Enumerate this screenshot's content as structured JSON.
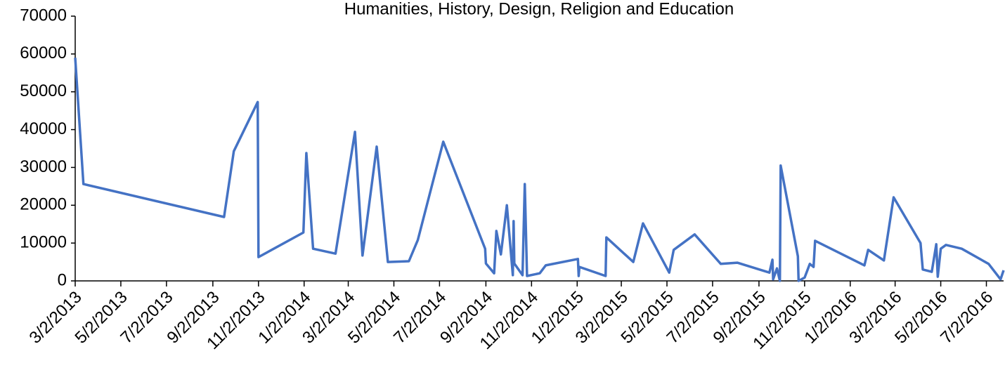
{
  "chart_data": {
    "type": "line",
    "title": "Humanities, History, Design, Religion and Education",
    "x": [
      "3/2/2013",
      "3/13/2013",
      "9/17/2013",
      "9/30/2013",
      "11/1/2013",
      "11/2/2013",
      "1/1/2014",
      "1/5/2014",
      "1/14/2014",
      "2/13/2014",
      "3/11/2014",
      "3/21/2014",
      "4/9/2014",
      "4/24/2014",
      "5/22/2014",
      "6/3/2014",
      "7/7/2014",
      "9/1/2014",
      "9/2/2014",
      "9/13/2014",
      "9/16/2014",
      "9/22/2014",
      "9/30/2014",
      "10/8/2014",
      "10/9/2014",
      "10/10/2014",
      "10/21/2014",
      "10/24/2014",
      "10/27/2014",
      "11/13/2014",
      "11/21/2014",
      "1/3/2015",
      "1/4/2015",
      "1/5/2015",
      "2/9/2015",
      "2/10/2015",
      "3/18/2015",
      "3/31/2015",
      "5/5/2015",
      "5/11/2015",
      "6/8/2015",
      "7/13/2015",
      "8/4/2015",
      "9/16/2015",
      "9/20/2015",
      "9/21/2015",
      "9/26/2015",
      "9/30/2015",
      "10/1/2015",
      "10/24/2015",
      "10/25/2015",
      "11/2/2015",
      "11/9/2015",
      "11/14/2015",
      "11/16/2015",
      "1/21/2016",
      "1/26/2016",
      "2/16/2016",
      "2/29/2016",
      "4/5/2016",
      "4/8/2016",
      "4/20/2016",
      "4/26/2016",
      "4/28/2016",
      "5/2/2016",
      "5/9/2016",
      "5/30/2016",
      "7/5/2016",
      "7/21/2016",
      "7/25/2016"
    ],
    "series": [
      {
        "color": "#4472c4",
        "values": [
          59000,
          25600,
          16900,
          34300,
          47300,
          6300,
          12800,
          33800,
          8500,
          7200,
          39400,
          6700,
          35500,
          5000,
          5200,
          10800,
          36800,
          8500,
          4600,
          2000,
          13200,
          7000,
          20000,
          1500,
          15800,
          4600,
          1500,
          25600,
          1300,
          2000,
          4100,
          5800,
          1300,
          3700,
          1300,
          11500,
          5000,
          15200,
          2200,
          8200,
          12300,
          4500,
          4800,
          2200,
          5600,
          400,
          3300,
          0,
          30500,
          6500,
          0,
          900,
          4500,
          3700,
          10600,
          4100,
          8200,
          5400,
          22100,
          10000,
          3000,
          2400,
          9700,
          1100,
          8500,
          9500,
          8500,
          4500,
          400,
          2800
        ]
      }
    ],
    "xlim": [
      "3/2/2013",
      "7/25/2016"
    ],
    "xticks": [
      "3/2/2013",
      "5/2/2013",
      "7/2/2013",
      "9/2/2013",
      "11/2/2013",
      "1/2/2014",
      "3/2/2014",
      "5/2/2014",
      "7/2/2014",
      "9/2/2014",
      "11/2/2014",
      "1/2/2015",
      "3/2/2015",
      "5/2/2015",
      "7/2/2015",
      "9/2/2015",
      "11/2/2015",
      "1/2/2016",
      "3/2/2016",
      "5/2/2016",
      "7/2/2016"
    ],
    "ylim": [
      0,
      70000
    ],
    "yticks": [
      0,
      10000,
      20000,
      30000,
      40000,
      50000,
      60000,
      70000
    ]
  }
}
